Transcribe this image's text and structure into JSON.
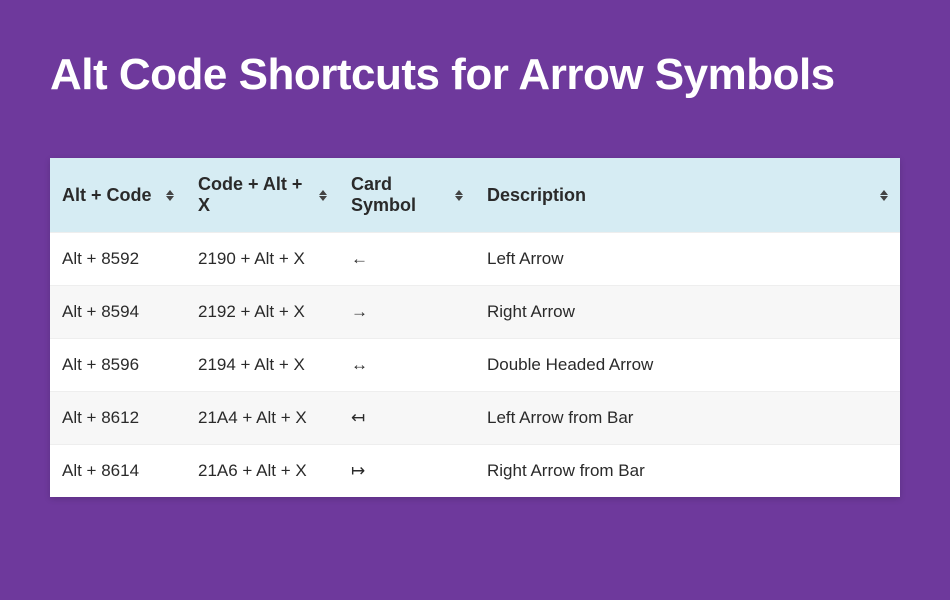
{
  "page": {
    "title": "Alt Code Shortcuts for Arrow Symbols",
    "background_color": "#6e399c",
    "title_color": "#ffffff",
    "title_fontsize": 44
  },
  "table": {
    "header_bg": "#d6ecf3",
    "row_alt_bg": "#f7f7f7",
    "text_color": "#2a2a2a",
    "font_size": 17,
    "header_font_size": 18,
    "columns": [
      {
        "key": "alt_code",
        "label": "Alt + Code",
        "width_pct": 16
      },
      {
        "key": "code_alt_x",
        "label": "Code + Alt + X",
        "width_pct": 18
      },
      {
        "key": "symbol",
        "label": "Card Symbol",
        "width_pct": 16
      },
      {
        "key": "description",
        "label": "Description",
        "width_pct": 50
      }
    ],
    "rows": [
      {
        "alt_code": "Alt + 8592",
        "code_alt_x": "2190 + Alt + X",
        "symbol": "←",
        "description": "Left Arrow"
      },
      {
        "alt_code": "Alt + 8594",
        "code_alt_x": "2192 + Alt + X",
        "symbol": "→",
        "description": "Right Arrow"
      },
      {
        "alt_code": "Alt + 8596",
        "code_alt_x": "2194 + Alt + X",
        "symbol": "↔",
        "description": "Double Headed Arrow"
      },
      {
        "alt_code": "Alt + 8612",
        "code_alt_x": "21A4 + Alt + X",
        "symbol": "↤",
        "description": "Left Arrow from Bar"
      },
      {
        "alt_code": "Alt + 8614",
        "code_alt_x": "21A6 + Alt + X",
        "symbol": "↦",
        "description": "Right Arrow from Bar"
      }
    ]
  }
}
